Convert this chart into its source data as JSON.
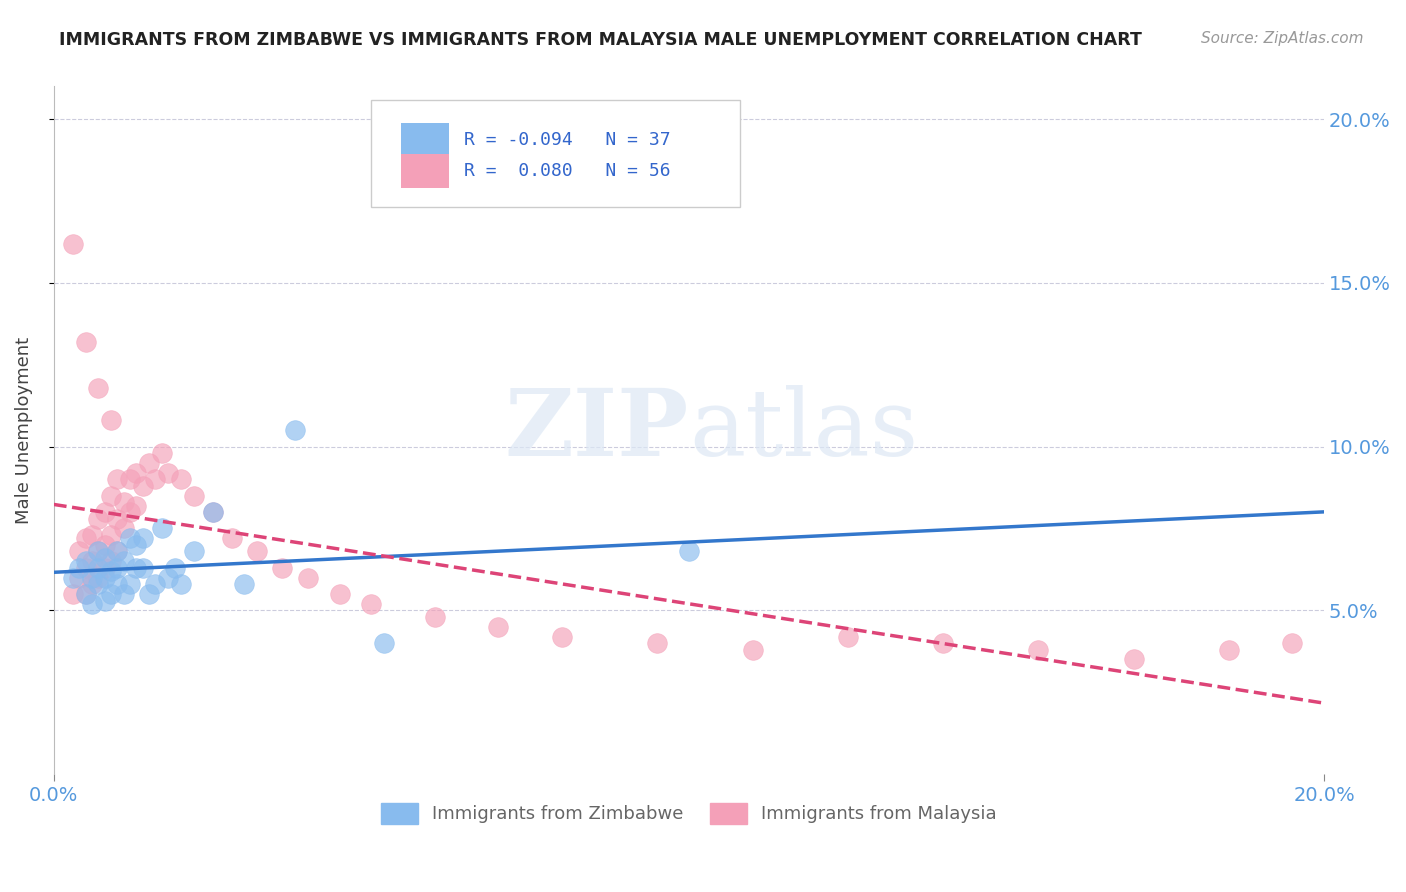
{
  "title": "IMMIGRANTS FROM ZIMBABWE VS IMMIGRANTS FROM MALAYSIA MALE UNEMPLOYMENT CORRELATION CHART",
  "source": "Source: ZipAtlas.com",
  "ylabel": "Male Unemployment",
  "xlim": [
    0.0,
    0.2
  ],
  "ylim": [
    0.0,
    0.21
  ],
  "yticks": [
    0.05,
    0.1,
    0.15,
    0.2
  ],
  "ytick_labels": [
    "5.0%",
    "10.0%",
    "15.0%",
    "20.0%"
  ],
  "color_zimbabwe": "#88bbee",
  "color_malaysia": "#f4a0b8",
  "line_color_zimbabwe": "#3377cc",
  "line_color_malaysia": "#dd4477",
  "watermark_zip": "ZIP",
  "watermark_atlas": "atlas",
  "background_color": "#ffffff",
  "grid_color": "#ccccdd",
  "zimbabwe_x": [
    0.003,
    0.004,
    0.005,
    0.005,
    0.006,
    0.006,
    0.007,
    0.007,
    0.007,
    0.008,
    0.008,
    0.008,
    0.009,
    0.009,
    0.01,
    0.01,
    0.01,
    0.011,
    0.011,
    0.012,
    0.012,
    0.013,
    0.013,
    0.014,
    0.014,
    0.015,
    0.016,
    0.017,
    0.018,
    0.019,
    0.02,
    0.022,
    0.025,
    0.03,
    0.038,
    0.052,
    0.1
  ],
  "zimbabwe_y": [
    0.06,
    0.063,
    0.055,
    0.065,
    0.052,
    0.06,
    0.058,
    0.063,
    0.068,
    0.053,
    0.06,
    0.066,
    0.055,
    0.062,
    0.058,
    0.063,
    0.068,
    0.055,
    0.065,
    0.058,
    0.072,
    0.063,
    0.07,
    0.063,
    0.072,
    0.055,
    0.058,
    0.075,
    0.06,
    0.063,
    0.058,
    0.068,
    0.08,
    0.058,
    0.105,
    0.04,
    0.068
  ],
  "malaysia_x": [
    0.003,
    0.004,
    0.004,
    0.005,
    0.005,
    0.005,
    0.006,
    0.006,
    0.006,
    0.007,
    0.007,
    0.007,
    0.008,
    0.008,
    0.008,
    0.009,
    0.009,
    0.009,
    0.01,
    0.01,
    0.01,
    0.011,
    0.011,
    0.012,
    0.012,
    0.013,
    0.013,
    0.014,
    0.015,
    0.016,
    0.017,
    0.018,
    0.02,
    0.022,
    0.025,
    0.028,
    0.032,
    0.036,
    0.04,
    0.045,
    0.05,
    0.06,
    0.07,
    0.08,
    0.095,
    0.11,
    0.125,
    0.14,
    0.155,
    0.17,
    0.185,
    0.195,
    0.003,
    0.005,
    0.007,
    0.009
  ],
  "malaysia_y": [
    0.055,
    0.06,
    0.068,
    0.055,
    0.063,
    0.072,
    0.058,
    0.065,
    0.073,
    0.06,
    0.068,
    0.078,
    0.063,
    0.07,
    0.08,
    0.065,
    0.073,
    0.085,
    0.068,
    0.078,
    0.09,
    0.075,
    0.083,
    0.08,
    0.09,
    0.082,
    0.092,
    0.088,
    0.095,
    0.09,
    0.098,
    0.092,
    0.09,
    0.085,
    0.08,
    0.072,
    0.068,
    0.063,
    0.06,
    0.055,
    0.052,
    0.048,
    0.045,
    0.042,
    0.04,
    0.038,
    0.042,
    0.04,
    0.038,
    0.035,
    0.038,
    0.04,
    0.162,
    0.132,
    0.118,
    0.108
  ]
}
